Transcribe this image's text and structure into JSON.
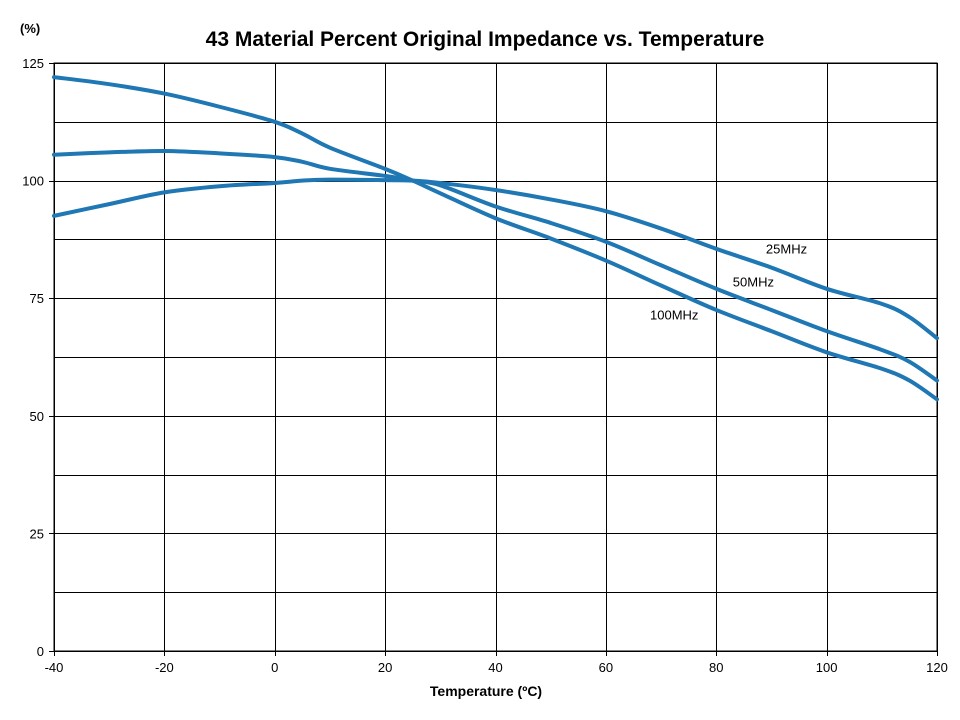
{
  "chart_data": {
    "type": "line",
    "title": "43 Material Percent Original Impedance vs. Temperature",
    "ylabel": "(%)",
    "xlabel": "Temperature (ºC)",
    "xlim": [
      -40,
      120
    ],
    "ylim": [
      0,
      125
    ],
    "x_ticks": [
      -40,
      -20,
      0,
      20,
      40,
      60,
      80,
      100,
      120
    ],
    "y_ticks": [
      0,
      25,
      50,
      75,
      100,
      125
    ],
    "grid": true,
    "line_color": "#1f77b4",
    "series": [
      {
        "name": "25MHz",
        "x": [
          -40,
          -30,
          -20,
          -10,
          0,
          5,
          10,
          20,
          25,
          30,
          40,
          50,
          60,
          70,
          80,
          90,
          100,
          110,
          115,
          120
        ],
        "values": [
          92.5,
          95.0,
          97.5,
          98.8,
          99.5,
          100.0,
          100.2,
          100.1,
          100.0,
          99.5,
          98.0,
          96.0,
          93.5,
          89.8,
          85.5,
          81.5,
          77.0,
          73.8,
          71.0,
          66.5
        ]
      },
      {
        "name": "50MHz",
        "x": [
          -40,
          -30,
          -20,
          -10,
          0,
          5,
          10,
          20,
          25,
          30,
          40,
          50,
          60,
          70,
          80,
          90,
          100,
          110,
          115,
          120
        ],
        "values": [
          105.5,
          106.0,
          106.3,
          105.8,
          105.0,
          104.0,
          102.5,
          101.0,
          100.0,
          99.0,
          94.5,
          91.0,
          87.0,
          82.0,
          77.0,
          72.5,
          68.0,
          64.0,
          61.5,
          57.5
        ]
      },
      {
        "name": "100MHz",
        "x": [
          -40,
          -30,
          -20,
          -10,
          0,
          5,
          10,
          20,
          25,
          30,
          40,
          50,
          60,
          70,
          80,
          90,
          100,
          110,
          115,
          120
        ],
        "values": [
          122.0,
          120.5,
          118.5,
          115.7,
          112.5,
          110.0,
          107.0,
          102.5,
          100.0,
          97.3,
          92.0,
          87.7,
          83.0,
          77.7,
          72.5,
          68.0,
          63.5,
          60.0,
          57.5,
          53.5
        ]
      }
    ],
    "series_label_positions": [
      {
        "x": 89,
        "y": 84.5
      },
      {
        "x": 83,
        "y": 77.5
      },
      {
        "x": 68,
        "y": 70.5
      }
    ]
  }
}
